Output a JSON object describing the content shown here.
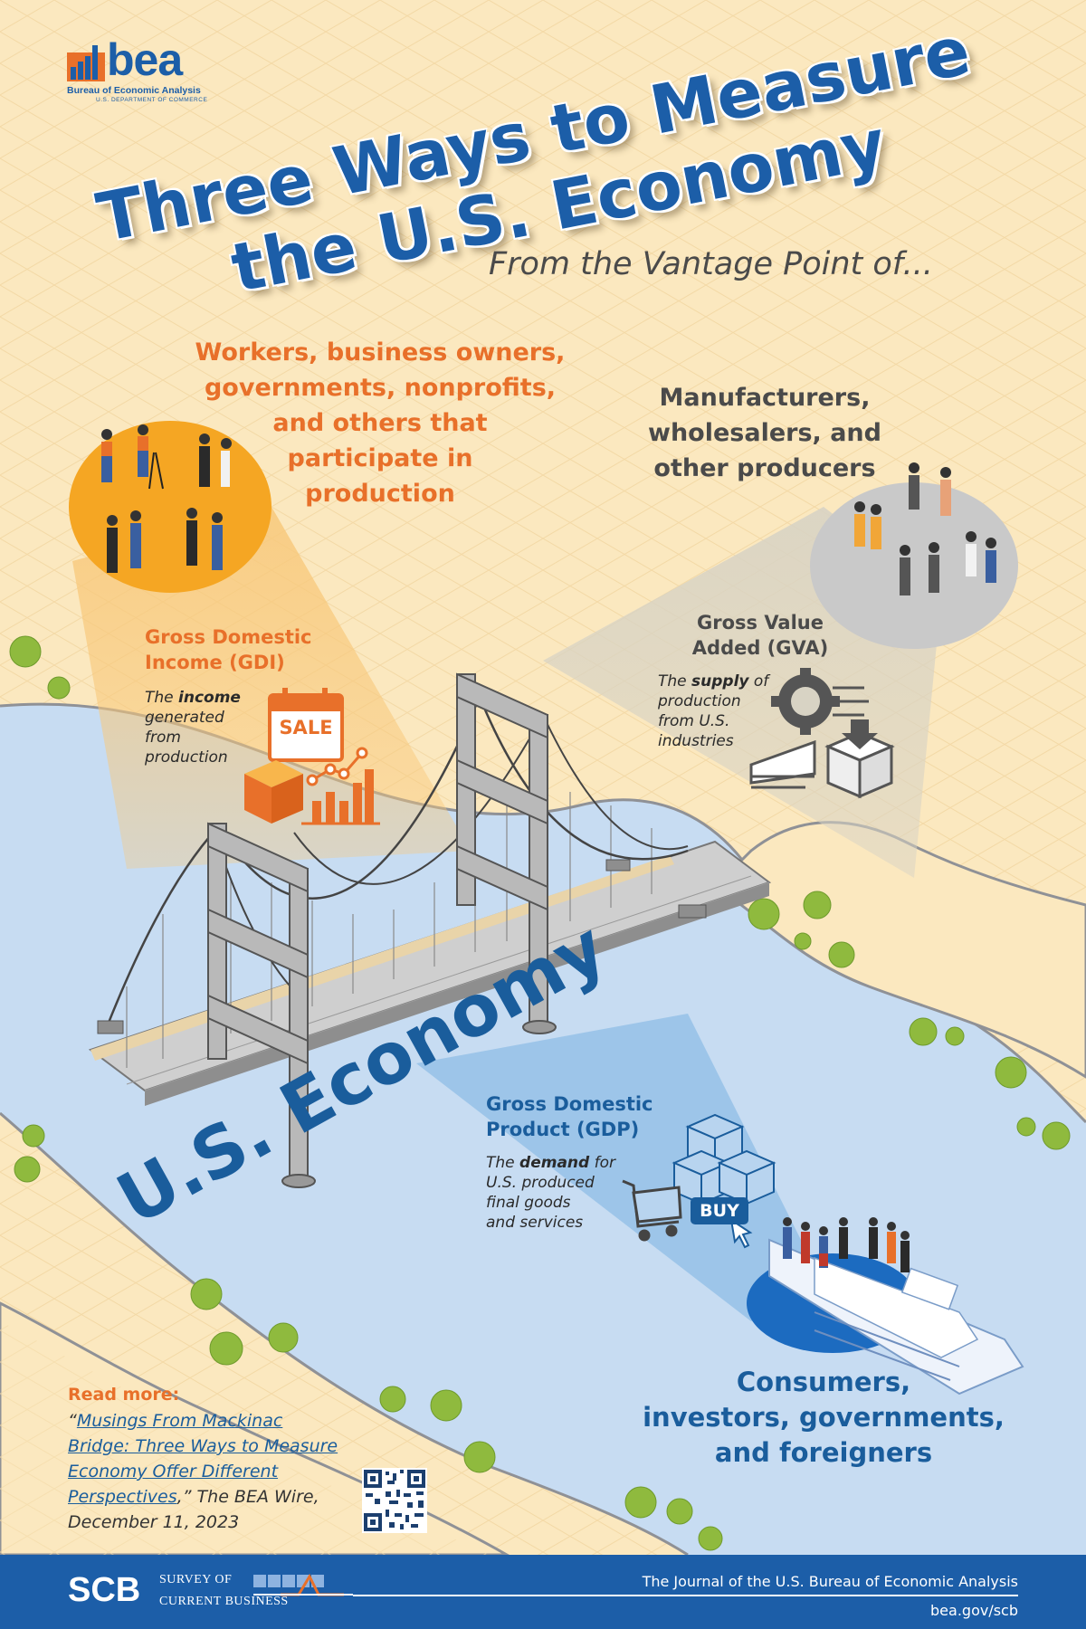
{
  "logo": {
    "word": "bea",
    "agency": "Bureau of Economic Analysis",
    "department": "U.S. DEPARTMENT OF COMMERCE"
  },
  "title": {
    "line1": "Three Ways to Measure",
    "line2": "the U.S. Economy"
  },
  "subtitle": "From the Vantage Point of...",
  "income_side": {
    "audience_lines": [
      "Workers, business owners,",
      "governments, nonprofits,",
      "and others that",
      "participate in",
      "production"
    ],
    "measure_title_lines": [
      "Gross Domestic",
      "Income (GDI)"
    ],
    "desc_pre": "The ",
    "desc_bold": "income",
    "desc_lines_after": [
      "generated",
      "from",
      "production"
    ],
    "sign_label": "SALE"
  },
  "value_added_side": {
    "audience_lines": [
      "Manufacturers,",
      "wholesalers, and",
      "other producers"
    ],
    "measure_title_lines": [
      "Gross Value",
      "Added (GVA)"
    ],
    "desc_pre": "The ",
    "desc_bold": "supply",
    "desc_post": " of",
    "desc_lines_after": [
      "production",
      "from U.S.",
      "industries"
    ]
  },
  "product_side": {
    "audience_lines": [
      "Consumers,",
      "investors, governments,",
      "and foreigners"
    ],
    "measure_title_lines": [
      "Gross Domestic",
      "Product (GDP)"
    ],
    "desc_pre": "The ",
    "desc_bold": "demand",
    "desc_post": " for",
    "desc_lines_after": [
      "U.S. produced",
      "final goods",
      "and services"
    ],
    "button_label": "BUY"
  },
  "bridge_label": "U.S. Economy",
  "read_more": {
    "label": "Read more:",
    "open_quote": "“",
    "link_lines": [
      "Musings From Mackinac",
      "Bridge: Three Ways to Measure",
      "Economy Offer Different",
      "Perspectives"
    ],
    "close_suffix": ",” The BEA Wire,",
    "date": "December 11, 2023"
  },
  "footer": {
    "brand": "SCB",
    "brand_line1": "SURVEY OF",
    "brand_line2": "CURRENT BUSINESS",
    "tagline": "The Journal of the U.S. Bureau of Economic Analysis",
    "url": "bea.gov/scb"
  },
  "colors": {
    "bea_blue": "#1c5ea8",
    "orange": "#e8702a",
    "sand": "#fbe8bf",
    "water": "#c7dcf2",
    "gray_text": "#4a4a4a"
  }
}
